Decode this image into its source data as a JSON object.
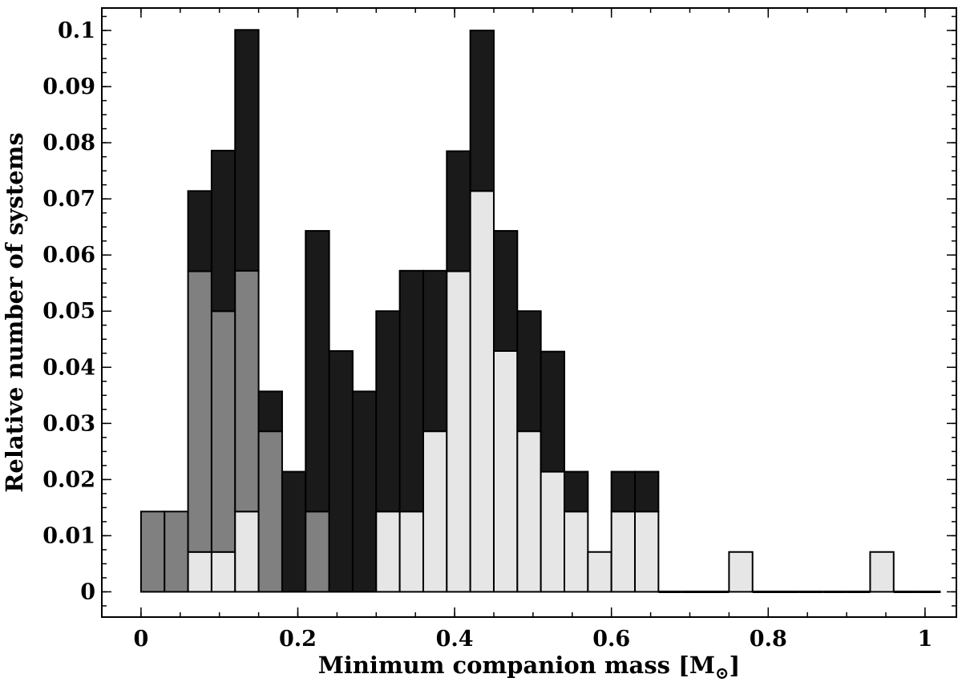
{
  "chart_data": {
    "type": "bar",
    "stacked": true,
    "xlabel": "Minimum companion mass [M",
    "xlabel_sub": "⊙",
    "xlabel_tail": "]",
    "ylabel": "Relative number of systems",
    "xlim": [
      -0.05,
      1.04
    ],
    "ylim": [
      -0.0045,
      0.104
    ],
    "x_ticks": [
      0,
      0.2,
      0.4,
      0.6,
      0.8,
      1
    ],
    "x_tick_labels": [
      "0",
      "0.2",
      "0.4",
      "0.6",
      "0.8",
      "1"
    ],
    "x_minor_step": 0.05,
    "y_ticks": [
      0,
      0.01,
      0.02,
      0.03,
      0.04,
      0.05,
      0.06,
      0.07,
      0.08,
      0.09,
      0.1
    ],
    "y_tick_labels": [
      "0",
      "0.01",
      "0.02",
      "0.03",
      "0.04",
      "0.05",
      "0.06",
      "0.07",
      "0.08",
      "0.09",
      "0.1"
    ],
    "y_minor_step": 0.0025,
    "bin_width": 0.03,
    "bin_start": 0,
    "grid": false,
    "series": [
      {
        "color": "#e6e6e6",
        "values": [
          0,
          0,
          0.0071,
          0.0071,
          0.0143,
          0,
          0,
          0,
          0,
          0,
          0.0143,
          0.0143,
          0.0286,
          0.0571,
          0.0714,
          0.0429,
          0.0286,
          0.0214,
          0.0143,
          0.0071,
          0.0143,
          0.0143,
          0,
          0,
          0,
          0.0071,
          0,
          0,
          0,
          0,
          0,
          0.0071,
          0,
          0
        ]
      },
      {
        "color": "#808080",
        "values": [
          0.0143,
          0.0143,
          0.05,
          0.0429,
          0.0429,
          0.0286,
          0,
          0.0143,
          0,
          0,
          0,
          0,
          0,
          0,
          0,
          0,
          0,
          0,
          0,
          0,
          0,
          0,
          0,
          0,
          0,
          0,
          0,
          0,
          0,
          0,
          0,
          0,
          0,
          0
        ]
      },
      {
        "color": "#1a1a1a",
        "values": [
          0,
          0,
          0.0143,
          0.0286,
          0.0429,
          0.0071,
          0.0214,
          0.05,
          0.0429,
          0.0357,
          0.0357,
          0.0429,
          0.0286,
          0.0214,
          0.0286,
          0.0214,
          0.0214,
          0.0214,
          0.0071,
          0,
          0.0071,
          0.0071,
          0,
          0,
          0,
          0,
          0,
          0,
          0,
          0,
          0,
          0,
          0,
          0
        ]
      }
    ]
  }
}
